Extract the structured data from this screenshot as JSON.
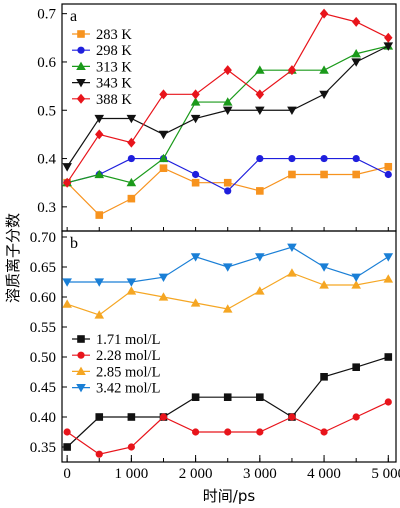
{
  "chart_data": [
    {
      "type": "line",
      "panel_label": "a",
      "xlabel": "",
      "ylim": [
        0.25,
        0.72
      ],
      "yticks": [
        0.3,
        0.4,
        0.5,
        0.6,
        0.7
      ],
      "legend": "top-left",
      "x": [
        0,
        500,
        1000,
        1500,
        2000,
        2500,
        3000,
        3500,
        4000,
        4500,
        5000
      ],
      "series": [
        {
          "name": "283 K",
          "color": "#f7931e",
          "marker": "square",
          "values": [
            0.35,
            0.283,
            0.317,
            0.38,
            0.35,
            0.35,
            0.333,
            0.367,
            0.367,
            0.367,
            0.383
          ]
        },
        {
          "name": "298 K",
          "color": "#1f1fdd",
          "marker": "circle",
          "values": [
            0.35,
            0.367,
            0.4,
            0.4,
            0.367,
            0.333,
            0.4,
            0.4,
            0.4,
            0.4,
            0.367
          ]
        },
        {
          "name": "313 K",
          "color": "#1a9a1a",
          "marker": "triangle-up",
          "values": [
            0.35,
            0.367,
            0.35,
            0.4,
            0.517,
            0.517,
            0.583,
            0.583,
            0.583,
            0.617,
            0.633
          ]
        },
        {
          "name": "343 K",
          "color": "#111111",
          "marker": "triangle-down",
          "values": [
            0.383,
            0.483,
            0.483,
            0.45,
            0.483,
            0.5,
            0.5,
            0.5,
            0.533,
            0.6,
            0.633
          ]
        },
        {
          "name": "388 K",
          "color": "#e8141b",
          "marker": "diamond",
          "values": [
            0.35,
            0.45,
            0.433,
            0.533,
            0.533,
            0.583,
            0.533,
            0.583,
            0.7,
            0.683,
            0.65
          ]
        }
      ]
    },
    {
      "type": "line",
      "panel_label": "b",
      "xlabel": "时间/ps",
      "ylim": [
        0.325,
        0.71
      ],
      "yticks": [
        0.35,
        0.4,
        0.45,
        0.5,
        0.55,
        0.6,
        0.65,
        0.7
      ],
      "legend": "bottom-left",
      "x": [
        0,
        500,
        1000,
        1500,
        2000,
        2500,
        3000,
        3500,
        4000,
        4500,
        5000
      ],
      "xticks": [
        0,
        1000,
        2000,
        3000,
        4000,
        5000
      ],
      "xtick_labels": [
        "0",
        "1 000",
        "2 000",
        "3 000",
        "4 000",
        "5 000"
      ],
      "series": [
        {
          "name": "1.71 mol/L",
          "color": "#111111",
          "marker": "square",
          "values": [
            0.35,
            0.4,
            0.4,
            0.4,
            0.433,
            0.433,
            0.433,
            0.4,
            0.467,
            0.483,
            0.5
          ]
        },
        {
          "name": "2.28 mol/L",
          "color": "#e8141b",
          "marker": "circle",
          "values": [
            0.375,
            0.338,
            0.35,
            0.4,
            0.375,
            0.375,
            0.375,
            0.4,
            0.375,
            0.4,
            0.425
          ]
        },
        {
          "name": "2.85 mol/L",
          "color": "#f5a623",
          "marker": "triangle-up",
          "values": [
            0.588,
            0.57,
            0.61,
            0.6,
            0.59,
            0.58,
            0.61,
            0.64,
            0.62,
            0.62,
            0.63
          ]
        },
        {
          "name": "3.42 mol/L",
          "color": "#1a7fd6",
          "marker": "triangle-down",
          "values": [
            0.625,
            0.625,
            0.625,
            0.633,
            0.667,
            0.65,
            0.667,
            0.683,
            0.65,
            0.633,
            0.667
          ]
        }
      ]
    }
  ],
  "shared_ylabel": "溶质离子分数"
}
